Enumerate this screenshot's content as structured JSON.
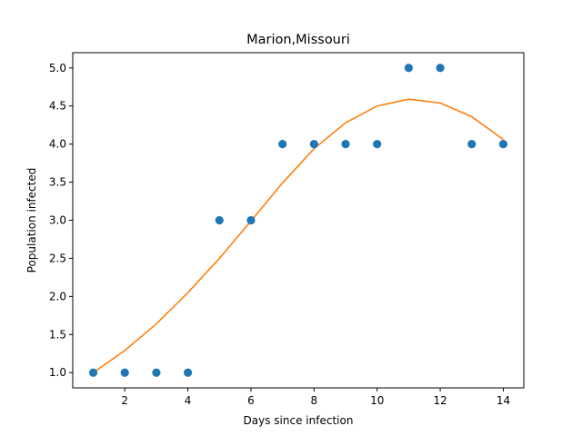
{
  "chart_data": {
    "type": "scatter",
    "title": "Marion,Missouri",
    "xlabel": "Days since infection",
    "ylabel": "Population infected",
    "xlim": [
      0.35,
      14.65
    ],
    "ylim": [
      0.8,
      5.2
    ],
    "grid": false,
    "legend": "none",
    "x_ticks": [
      2,
      4,
      6,
      8,
      10,
      12,
      14
    ],
    "x_tick_labels": [
      "2",
      "4",
      "6",
      "8",
      "10",
      "12",
      "14"
    ],
    "y_ticks": [
      1.0,
      1.5,
      2.0,
      2.5,
      3.0,
      3.5,
      4.0,
      4.5,
      5.0
    ],
    "y_tick_labels": [
      "1.0",
      "1.5",
      "2.0",
      "2.5",
      "3.0",
      "3.5",
      "4.0",
      "4.5",
      "5.0"
    ],
    "series": [
      {
        "kind": "scatter",
        "color": "#1f77b4",
        "x": [
          1,
          2,
          3,
          4,
          5,
          6,
          7,
          8,
          9,
          10,
          11,
          12,
          13,
          14
        ],
        "y": [
          1,
          1,
          1,
          1,
          3,
          3,
          4,
          4,
          4,
          4,
          5,
          5,
          4,
          4
        ]
      },
      {
        "kind": "line",
        "color": "#ff7f0e",
        "x": [
          1,
          2,
          3,
          4,
          5,
          6,
          7,
          8,
          9,
          10,
          11,
          12,
          13,
          14
        ],
        "y": [
          1.0,
          1.29,
          1.64,
          2.05,
          2.5,
          2.99,
          3.49,
          3.94,
          4.28,
          4.5,
          4.59,
          4.54,
          4.36,
          4.06
        ]
      }
    ]
  }
}
